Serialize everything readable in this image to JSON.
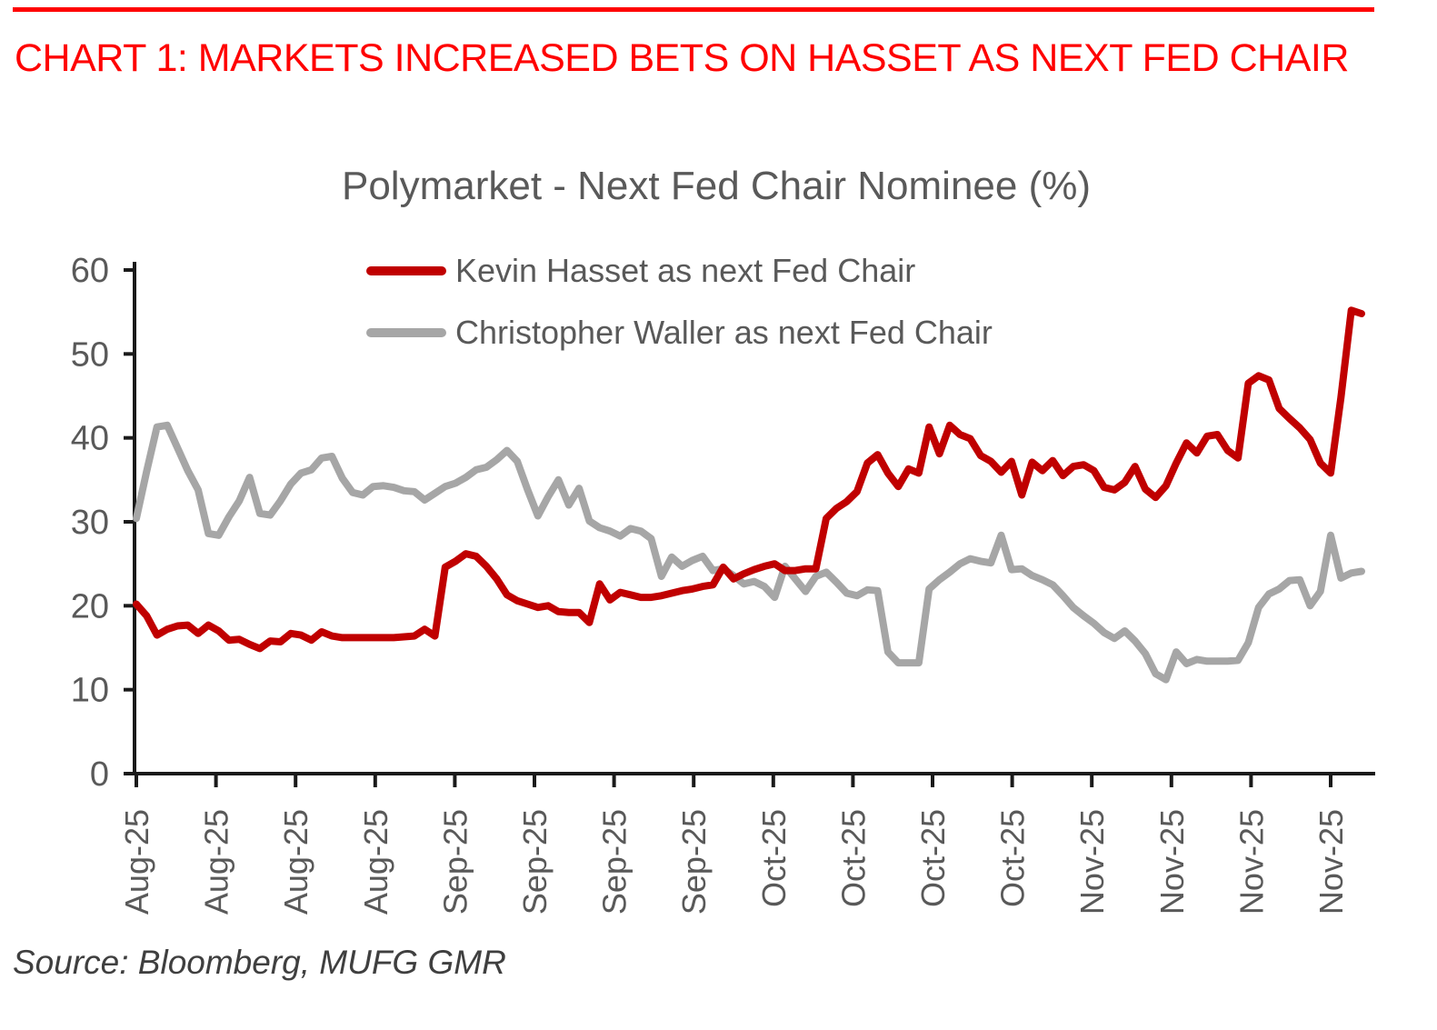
{
  "header": {
    "title": "CHART 1: MARKETS INCREASED BETS ON HASSET AS NEXT FED CHAIR",
    "color": "#FF0000",
    "rule_color": "#FF0000"
  },
  "source": {
    "text": "Source: Bloomberg, MUFG GMR"
  },
  "chart_data": {
    "type": "line",
    "title": "Polymarket - Next Fed Chair Nominee (%)",
    "xlabel": "",
    "ylabel": "",
    "ylim": [
      0,
      60
    ],
    "yticks": [
      0,
      10,
      20,
      30,
      40,
      50,
      60
    ],
    "x_tick_labels": [
      "Aug-25",
      "Aug-25",
      "Aug-25",
      "Aug-25",
      "Sep-25",
      "Sep-25",
      "Sep-25",
      "Sep-25",
      "Oct-25",
      "Oct-25",
      "Oct-25",
      "Oct-25",
      "Nov-25",
      "Nov-25",
      "Nov-25",
      "Nov-25"
    ],
    "grid": false,
    "legend_position": "top-center",
    "axis_color": "#1a1a1a",
    "label_color": "#595959",
    "series": [
      {
        "key": "hasset",
        "name": "Kevin Hasset as next Fed Chair",
        "color": "#C00000",
        "values": [
          20.2,
          18.8,
          16.5,
          17.2,
          17.6,
          17.7,
          16.7,
          17.7,
          17.0,
          15.9,
          16.0,
          15.4,
          14.9,
          15.8,
          15.7,
          16.7,
          16.5,
          15.9,
          16.9,
          16.4,
          16.2,
          16.2,
          16.2,
          16.2,
          16.2,
          16.2,
          16.3,
          16.4,
          17.2,
          16.4,
          24.6,
          25.3,
          26.2,
          25.9,
          24.7,
          23.2,
          21.3,
          20.6,
          20.2,
          19.8,
          20.0,
          19.3,
          19.2,
          19.2,
          18.0,
          22.6,
          20.7,
          21.6,
          21.3,
          21.0,
          21.0,
          21.2,
          21.5,
          21.8,
          22.0,
          22.3,
          22.5,
          24.6,
          23.2,
          23.8,
          24.3,
          24.7,
          25.0,
          24.2,
          24.2,
          24.4,
          24.4,
          30.4,
          31.6,
          32.4,
          33.6,
          37.0,
          38.0,
          35.8,
          34.2,
          36.3,
          35.8,
          41.3,
          38.1,
          41.5,
          40.4,
          39.9,
          37.9,
          37.2,
          35.9,
          37.2,
          33.2,
          37.1,
          36.1,
          37.3,
          35.5,
          36.6,
          36.8,
          36.1,
          34.1,
          33.8,
          34.7,
          36.6,
          33.9,
          32.9,
          34.3,
          37.0,
          39.4,
          38.2,
          40.2,
          40.4,
          38.5,
          37.6,
          46.5,
          47.4,
          46.9,
          43.5,
          42.3,
          41.2,
          39.8,
          37.0,
          35.8,
          44.8,
          55.2,
          54.8
        ]
      },
      {
        "key": "waller",
        "name": "Christopher Waller as next Fed Chair",
        "color": "#A6A6A6",
        "values": [
          30.4,
          36.0,
          41.3,
          41.5,
          38.8,
          36.1,
          33.8,
          28.6,
          28.4,
          30.6,
          32.5,
          35.3,
          31.0,
          30.8,
          32.5,
          34.5,
          35.8,
          36.2,
          37.6,
          37.8,
          35.2,
          33.5,
          33.2,
          34.2,
          34.3,
          34.1,
          33.7,
          33.6,
          32.6,
          33.4,
          34.2,
          34.6,
          35.3,
          36.2,
          36.5,
          37.4,
          38.5,
          37.2,
          33.8,
          30.7,
          33.0,
          35.0,
          32.0,
          34.0,
          30.1,
          29.3,
          28.9,
          28.3,
          29.2,
          28.9,
          28.0,
          23.5,
          25.8,
          24.7,
          25.4,
          25.9,
          24.2,
          24.4,
          23.6,
          22.6,
          22.9,
          22.3,
          21.0,
          24.7,
          23.2,
          21.7,
          23.5,
          24.0,
          22.8,
          21.5,
          21.2,
          21.9,
          21.8,
          14.5,
          13.2,
          13.2,
          13.2,
          22.0,
          23.1,
          24.0,
          25.0,
          25.6,
          25.3,
          25.1,
          28.4,
          24.3,
          24.4,
          23.6,
          23.1,
          22.5,
          21.2,
          19.8,
          18.8,
          17.9,
          16.8,
          16.1,
          17.0,
          15.8,
          14.3,
          11.9,
          11.2,
          14.5,
          13.1,
          13.6,
          13.4,
          13.4,
          13.4,
          13.5,
          15.6,
          19.8,
          21.4,
          22.0,
          23.0,
          23.1,
          20.0,
          21.7,
          28.4,
          23.3,
          23.9,
          24.1
        ]
      }
    ]
  }
}
